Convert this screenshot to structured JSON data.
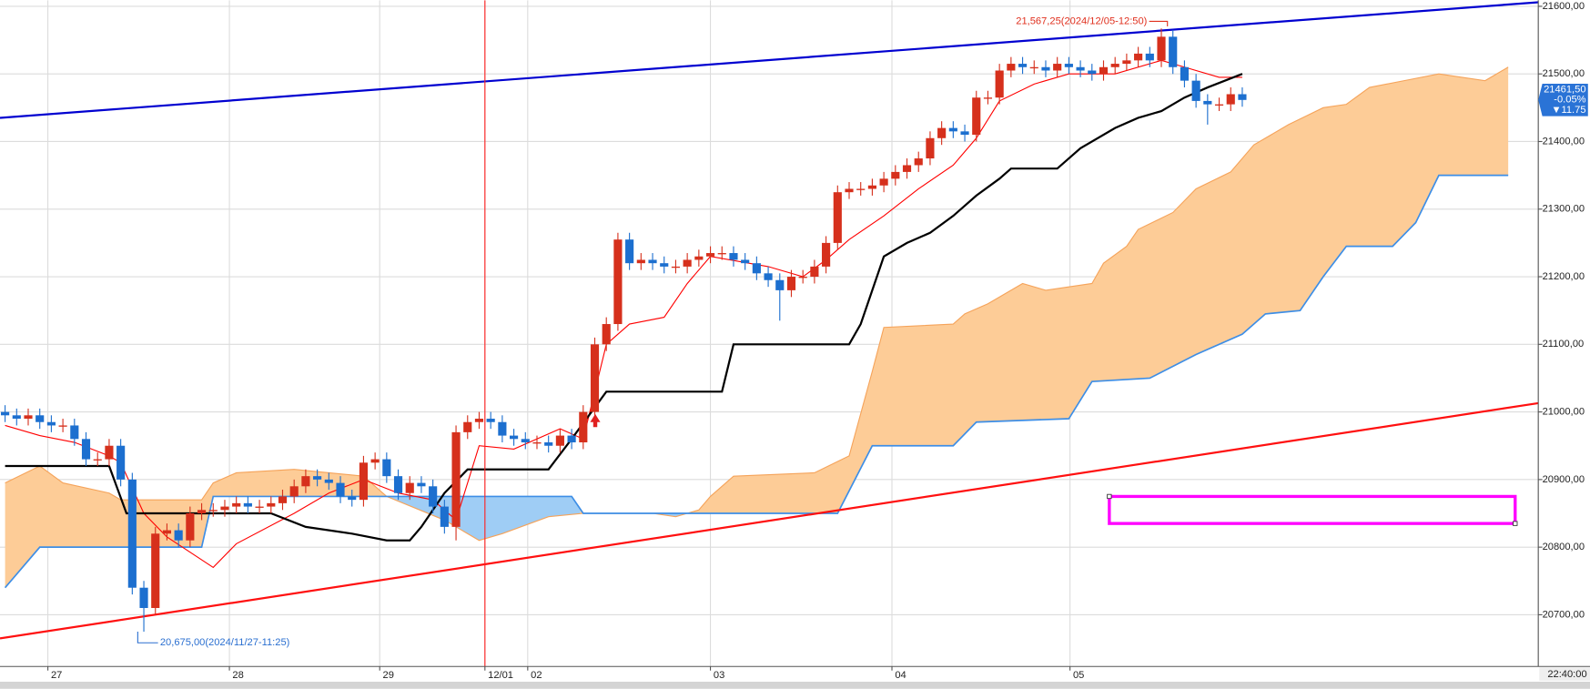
{
  "chart_data": {
    "type": "candlestick",
    "xlim": [
      -0.44,
      132.6
    ],
    "ylim": [
      20623.5,
      21609
    ],
    "grid": true,
    "up_color": "#d6301c",
    "down_color": "#1c6fcf",
    "xticks": [
      {
        "value": 3.7,
        "label": "27"
      },
      {
        "value": 19.4,
        "label": "28"
      },
      {
        "value": 32.4,
        "label": "29"
      },
      {
        "value": 41.5,
        "label": "12/01"
      },
      {
        "value": 45.2,
        "label": "02"
      },
      {
        "value": 61.0,
        "label": "03"
      },
      {
        "value": 76.7,
        "label": "04"
      },
      {
        "value": 92.1,
        "label": "05"
      }
    ],
    "yticks": [
      {
        "value": 21600,
        "label": "21600,00"
      },
      {
        "value": 21500,
        "label": "21500,00"
      },
      {
        "value": 21400,
        "label": "21400,00"
      },
      {
        "value": 21300,
        "label": "21300,00"
      },
      {
        "value": 21200,
        "label": "21200,00"
      },
      {
        "value": 21100,
        "label": "21100,00"
      },
      {
        "value": 21000,
        "label": "21000,00"
      },
      {
        "value": 20900,
        "label": "20900,00"
      },
      {
        "value": 20800,
        "label": "20800,00"
      },
      {
        "value": 20700,
        "label": "20700,00"
      }
    ],
    "open": [
      21000,
      20995,
      20990,
      20995,
      20985,
      20980,
      20980,
      20960,
      20930,
      20930,
      20950,
      20900,
      20740,
      20710,
      20820,
      20825,
      20810,
      20850,
      20855,
      20855,
      20860,
      20865,
      20860,
      20860,
      20865,
      20875,
      20890,
      20905,
      20900,
      20895,
      20875,
      20870,
      20925,
      20930,
      20905,
      20880,
      20895,
      20890,
      20860,
      20830,
      20970,
      20985,
      20990,
      20985,
      20965,
      20960,
      20955,
      20955,
      20950,
      20965,
      20955,
      21000,
      21100,
      21130,
      21255,
      21220,
      21225,
      21220,
      21215,
      21215,
      21225,
      21230,
      21235,
      21235,
      21225,
      21220,
      21205,
      21195,
      21180,
      21200,
      21200,
      21215,
      21250,
      21325,
      21330,
      21330,
      21335,
      21345,
      21355,
      21365,
      21375,
      21405,
      21420,
      21415,
      21410,
      21465,
      21465,
      21505,
      21515,
      21510,
      21510,
      21505,
      21515,
      21510,
      21505,
      21500,
      21510,
      21515,
      21520,
      21530,
      21520,
      21555,
      21510,
      21490,
      21460,
      21455,
      21455,
      21470
    ],
    "high": [
      21010,
      21005,
      21005,
      21005,
      20995,
      20990,
      20990,
      20970,
      20940,
      20960,
      20960,
      20910,
      20750,
      20830,
      20835,
      20835,
      20860,
      20865,
      20865,
      20870,
      20875,
      20875,
      20870,
      20875,
      20885,
      20900,
      20915,
      20915,
      20910,
      20905,
      20885,
      20935,
      20940,
      20940,
      20915,
      20905,
      20905,
      20900,
      20870,
      20980,
      20995,
      21000,
      21000,
      20995,
      20975,
      20970,
      20965,
      20965,
      20975,
      20975,
      21010,
      21110,
      21140,
      21265,
      21265,
      21235,
      21235,
      21230,
      21225,
      21235,
      21240,
      21245,
      21245,
      21245,
      21235,
      21230,
      21215,
      21205,
      21210,
      21210,
      21225,
      21260,
      21335,
      21340,
      21340,
      21345,
      21355,
      21365,
      21375,
      21385,
      21415,
      21430,
      21430,
      21425,
      21475,
      21475,
      21515,
      21525,
      21525,
      21520,
      21520,
      21525,
      21525,
      21520,
      21515,
      21520,
      21525,
      21530,
      21540,
      21540,
      21567.25,
      21565,
      21520,
      21500,
      21470,
      21465,
      21480,
      21480
    ],
    "low": [
      20985,
      20980,
      20980,
      20975,
      20970,
      20970,
      20950,
      20920,
      20920,
      20920,
      20890,
      20730,
      20675,
      20700,
      20810,
      20800,
      20800,
      20840,
      20845,
      20845,
      20850,
      20850,
      20850,
      20850,
      20855,
      20865,
      20880,
      20890,
      20885,
      20865,
      20860,
      20860,
      20915,
      20895,
      20870,
      20870,
      20880,
      20850,
      20820,
      20810,
      20960,
      20975,
      20975,
      20955,
      20950,
      20945,
      20945,
      20940,
      20940,
      20945,
      20945,
      20990,
      21090,
      21120,
      21210,
      21210,
      21210,
      21205,
      21205,
      21205,
      21215,
      21220,
      21225,
      21215,
      21210,
      21195,
      21185,
      21135,
      21170,
      21190,
      21190,
      21205,
      21240,
      21315,
      21320,
      21320,
      21325,
      21335,
      21345,
      21355,
      21365,
      21395,
      21405,
      21400,
      21400,
      21455,
      21455,
      21495,
      21500,
      21500,
      21495,
      21495,
      21500,
      21495,
      21490,
      21490,
      21500,
      21505,
      21510,
      21510,
      21510,
      21500,
      21480,
      21450,
      21425,
      21445,
      21445,
      21451.5
    ],
    "close": [
      20995,
      20990,
      20995,
      20985,
      20980,
      20980,
      20960,
      20930,
      20930,
      20950,
      20900,
      20740,
      20710,
      20820,
      20825,
      20810,
      20850,
      20855,
      20855,
      20860,
      20865,
      20860,
      20860,
      20865,
      20875,
      20890,
      20905,
      20900,
      20895,
      20875,
      20870,
      20925,
      20930,
      20905,
      20880,
      20895,
      20890,
      20860,
      20830,
      20970,
      20985,
      20990,
      20985,
      20965,
      20960,
      20955,
      20955,
      20950,
      20965,
      20955,
      21000,
      21100,
      21130,
      21255,
      21220,
      21225,
      21220,
      21215,
      21215,
      21225,
      21230,
      21235,
      21235,
      21225,
      21220,
      21205,
      21195,
      21180,
      21200,
      21200,
      21215,
      21250,
      21325,
      21330,
      21330,
      21335,
      21345,
      21355,
      21365,
      21375,
      21405,
      21420,
      21415,
      21410,
      21465,
      21465,
      21505,
      21515,
      21510,
      21510,
      21505,
      21515,
      21510,
      21505,
      21500,
      21510,
      21515,
      21520,
      21530,
      21520,
      21555,
      21510,
      21490,
      21460,
      21455,
      21455,
      21470,
      21461.5
    ],
    "cloud": {
      "fill_colors": [
        "#fdcc97",
        "#9fcdf5"
      ],
      "span_a": {
        "color": "#f5a35a",
        "x": [
          0,
          3,
          5,
          9,
          10,
          17,
          18,
          20,
          25,
          28,
          31,
          33,
          38,
          41,
          43,
          47,
          50,
          56,
          58,
          60,
          61,
          63,
          70,
          73,
          75,
          76,
          82,
          83,
          85,
          88,
          90,
          94,
          95,
          97,
          98,
          101,
          103,
          106,
          108,
          111,
          114,
          116,
          118,
          121,
          124,
          128,
          130
        ],
        "values": [
          20895,
          20920,
          20895,
          20880,
          20870,
          20870,
          20895,
          20910,
          20915,
          20910,
          20905,
          20875,
          20840,
          20810,
          20820,
          20845,
          20850,
          20850,
          20845,
          20855,
          20875,
          20905,
          20910,
          20935,
          21060,
          21125,
          21130,
          21145,
          21160,
          21190,
          21180,
          21190,
          21220,
          21245,
          21270,
          21295,
          21330,
          21355,
          21395,
          21425,
          21450,
          21455,
          21480,
          21490,
          21500,
          21490,
          21510
        ]
      },
      "span_b": {
        "color": "#3d8ee6",
        "x": [
          0,
          3,
          17,
          18,
          49,
          50,
          72,
          75,
          82,
          84,
          92,
          94,
          99,
          103,
          107,
          109,
          112,
          114,
          116,
          120,
          122,
          124,
          130
        ],
        "values": [
          20740,
          20800,
          20800,
          20875,
          20875,
          20850,
          20850,
          20950,
          20950,
          20985,
          20990,
          21045,
          21050,
          21085,
          21115,
          21145,
          21150,
          21200,
          21245,
          21245,
          21280,
          21350,
          21350
        ]
      }
    },
    "lines": [
      {
        "color": "#ff0000",
        "x": [
          0,
          3,
          6,
          9,
          10,
          12,
          14,
          18,
          20,
          25,
          28,
          31,
          34,
          37,
          39,
          41,
          44,
          48,
          50,
          52,
          54,
          57,
          59,
          61,
          66,
          69,
          71,
          73,
          76,
          79,
          82,
          84,
          86,
          89,
          92,
          96,
          100,
          102,
          105,
          107
        ],
        "values": [
          20980,
          20965,
          20955,
          20935,
          20925,
          20850,
          20815,
          20770,
          20805,
          20850,
          20880,
          20900,
          20880,
          20870,
          20840,
          20950,
          20945,
          20975,
          20960,
          21100,
          21130,
          21140,
          21190,
          21230,
          21215,
          21200,
          21225,
          21255,
          21290,
          21330,
          21365,
          21405,
          21460,
          21485,
          21500,
          21500,
          21520,
          21510,
          21495,
          21495
        ]
      },
      {
        "color": "#000000",
        "x": [
          0,
          9,
          10.5,
          23,
          26,
          30,
          33,
          35,
          36,
          38,
          40,
          47,
          49,
          52,
          62,
          63,
          73,
          74,
          75,
          76,
          78,
          80,
          82,
          84,
          86,
          87,
          91,
          93,
          96,
          98,
          100,
          102,
          104,
          107
        ],
        "values": [
          20920,
          20920,
          20850,
          20850,
          20830,
          20820,
          20810,
          20810,
          20830,
          20880,
          20915,
          20915,
          20960,
          21030,
          21030,
          21100,
          21100,
          21130,
          21180,
          21230,
          21250,
          21265,
          21290,
          21320,
          21345,
          21360,
          21360,
          21390,
          21420,
          21435,
          21445,
          21465,
          21480,
          21500
        ]
      }
    ],
    "trend_lines": [
      {
        "color": "#0000d0",
        "x": [
          -0.44,
          132.6
        ],
        "values": [
          21435,
          21606
        ]
      },
      {
        "color": "#ff1010",
        "x": [
          -0.44,
          132.6
        ],
        "values": [
          20665,
          21013
        ]
      }
    ],
    "vline": {
      "x": 41.5,
      "color": "#ff2020"
    },
    "rectangle": {
      "x": [
        95.5,
        130.6
      ],
      "y": [
        20835,
        20875
      ],
      "color": "#ff00ff"
    },
    "annotations": [
      {
        "text": "21,567,25(2024/12/05-12:50)",
        "x": 100,
        "y": 21567.25,
        "color": "#e0301e"
      },
      {
        "text": "20,675,00(2024/11/27-11:25)",
        "x": 12,
        "y": 20675,
        "color": "#2a6fd0"
      }
    ],
    "last_price": {
      "value": 21461.5,
      "label": "21461,50"
    },
    "change_pct": "-0.05%",
    "change": "▼11.75",
    "crosshair_time": "22:40:00"
  }
}
